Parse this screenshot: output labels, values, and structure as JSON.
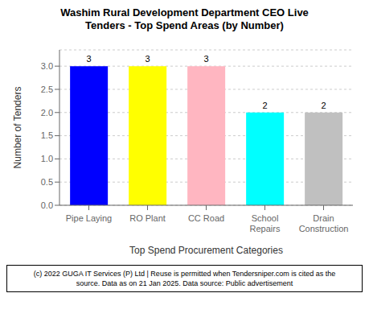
{
  "chart_data": {
    "type": "bar",
    "title": "Washim Rural Development Department CEO Live\nTenders - Top Spend Areas (by Number)",
    "categories": [
      "Pipe Laying",
      "RO Plant",
      "CC Road",
      "School\nRepairs",
      "Drain\nConstruction"
    ],
    "values": [
      3,
      3,
      3,
      2,
      2
    ],
    "colors": [
      "#0000FF",
      "#FFFF00",
      "#FFB6C1",
      "#00FFFF",
      "#C0C0C0"
    ],
    "y_label": "Number of Tenders",
    "x_label": "Top Spend Procurement Categories",
    "ylim": [
      0,
      3.35
    ],
    "yticks": [
      {
        "value": 0,
        "label": "0.0"
      },
      0.5,
      {
        "value": 1,
        "label": "1.0"
      },
      1.5,
      {
        "value": 2,
        "label": "2.0"
      },
      2.5,
      {
        "value": 3,
        "label": "3.0"
      }
    ],
    "grid": true,
    "data_labels": true,
    "annotations": [
      "(c) 2022 GUGA IT Services (P) Ltd | Reuse is permitted when Tendersniper.com is cited as the",
      "source. Data as on 21 Jan 2025. Data source: Public advertisement"
    ]
  }
}
